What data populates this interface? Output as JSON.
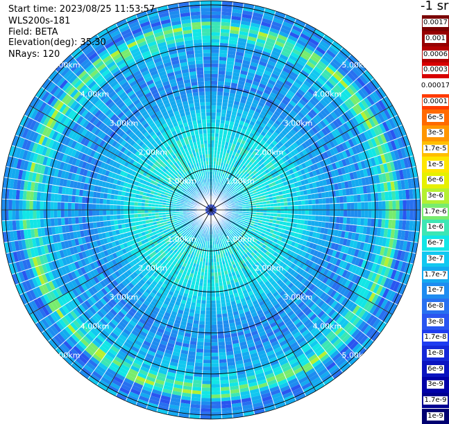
{
  "chart_data": {
    "type": "heatmap",
    "projection": "polar-ppi",
    "info": [
      "Start time: 2023/08/25 11:53:57",
      "WLS200s-181",
      "Field: BETA",
      "Elevation(deg): 35.30",
      "NRays: 120"
    ],
    "range_rings_km": [
      1,
      2,
      3,
      4,
      5
    ],
    "range_labels": [
      "1.00km",
      "2.00km",
      "3.00km",
      "4.00km",
      "5.00km"
    ],
    "max_range_km": 5.1,
    "n_rays": 120,
    "spoke_angles_deg": [
      0,
      30,
      60,
      90,
      120,
      150,
      180,
      210,
      240,
      270,
      300,
      330
    ],
    "colorbar": {
      "title": "-1 sr",
      "labels": [
        "0.0017",
        "0.001",
        "0.0006",
        "0.0003",
        "0.00017",
        "0.0001",
        "6e-5",
        "3e-5",
        "1.7e-5",
        "1e-5",
        "6e-6",
        "3e-6",
        "1.7e-6",
        "1e-6",
        "6e-7",
        "3e-7",
        "1.7e-7",
        "1e-7",
        "6e-8",
        "3e-8",
        "1.7e-8",
        "1e-8",
        "6e-9",
        "3e-9",
        "1.7e-9",
        "1e-9"
      ],
      "colors": [
        "#7a0000",
        "#960000",
        "#b40000",
        "#d80000",
        "#ffffff",
        "#ff3a00",
        "#ff6a00",
        "#ff9600",
        "#ffbe00",
        "#ffe600",
        "#e6f000",
        "#b4f032",
        "#78ec6e",
        "#3ce6b4",
        "#12e6e6",
        "#12c8f0",
        "#14aaf0",
        "#1e8cf0",
        "#2870f0",
        "#2a55f0",
        "#1e3cf0",
        "#1428d8",
        "#0a14c0",
        "#0000a8",
        "#000090",
        "#000070"
      ]
    },
    "range_profile": [
      {
        "range_km": 0.0,
        "value": "1e-8"
      },
      {
        "range_km": 0.5,
        "value": "1.7e-7"
      },
      {
        "range_km": 1.0,
        "value": "6e-7"
      },
      {
        "range_km": 1.8,
        "value": "6e-7"
      },
      {
        "range_km": 2.3,
        "value": "3e-7"
      },
      {
        "range_km": 3.0,
        "value": "1e-7"
      },
      {
        "range_km": 4.0,
        "value": "1.7e-7"
      },
      {
        "range_km": 4.5,
        "value": "1.7e-6"
      },
      {
        "range_km": 4.7,
        "value": "6e-8"
      },
      {
        "range_km": 5.1,
        "value": "1.7e-7"
      }
    ]
  }
}
